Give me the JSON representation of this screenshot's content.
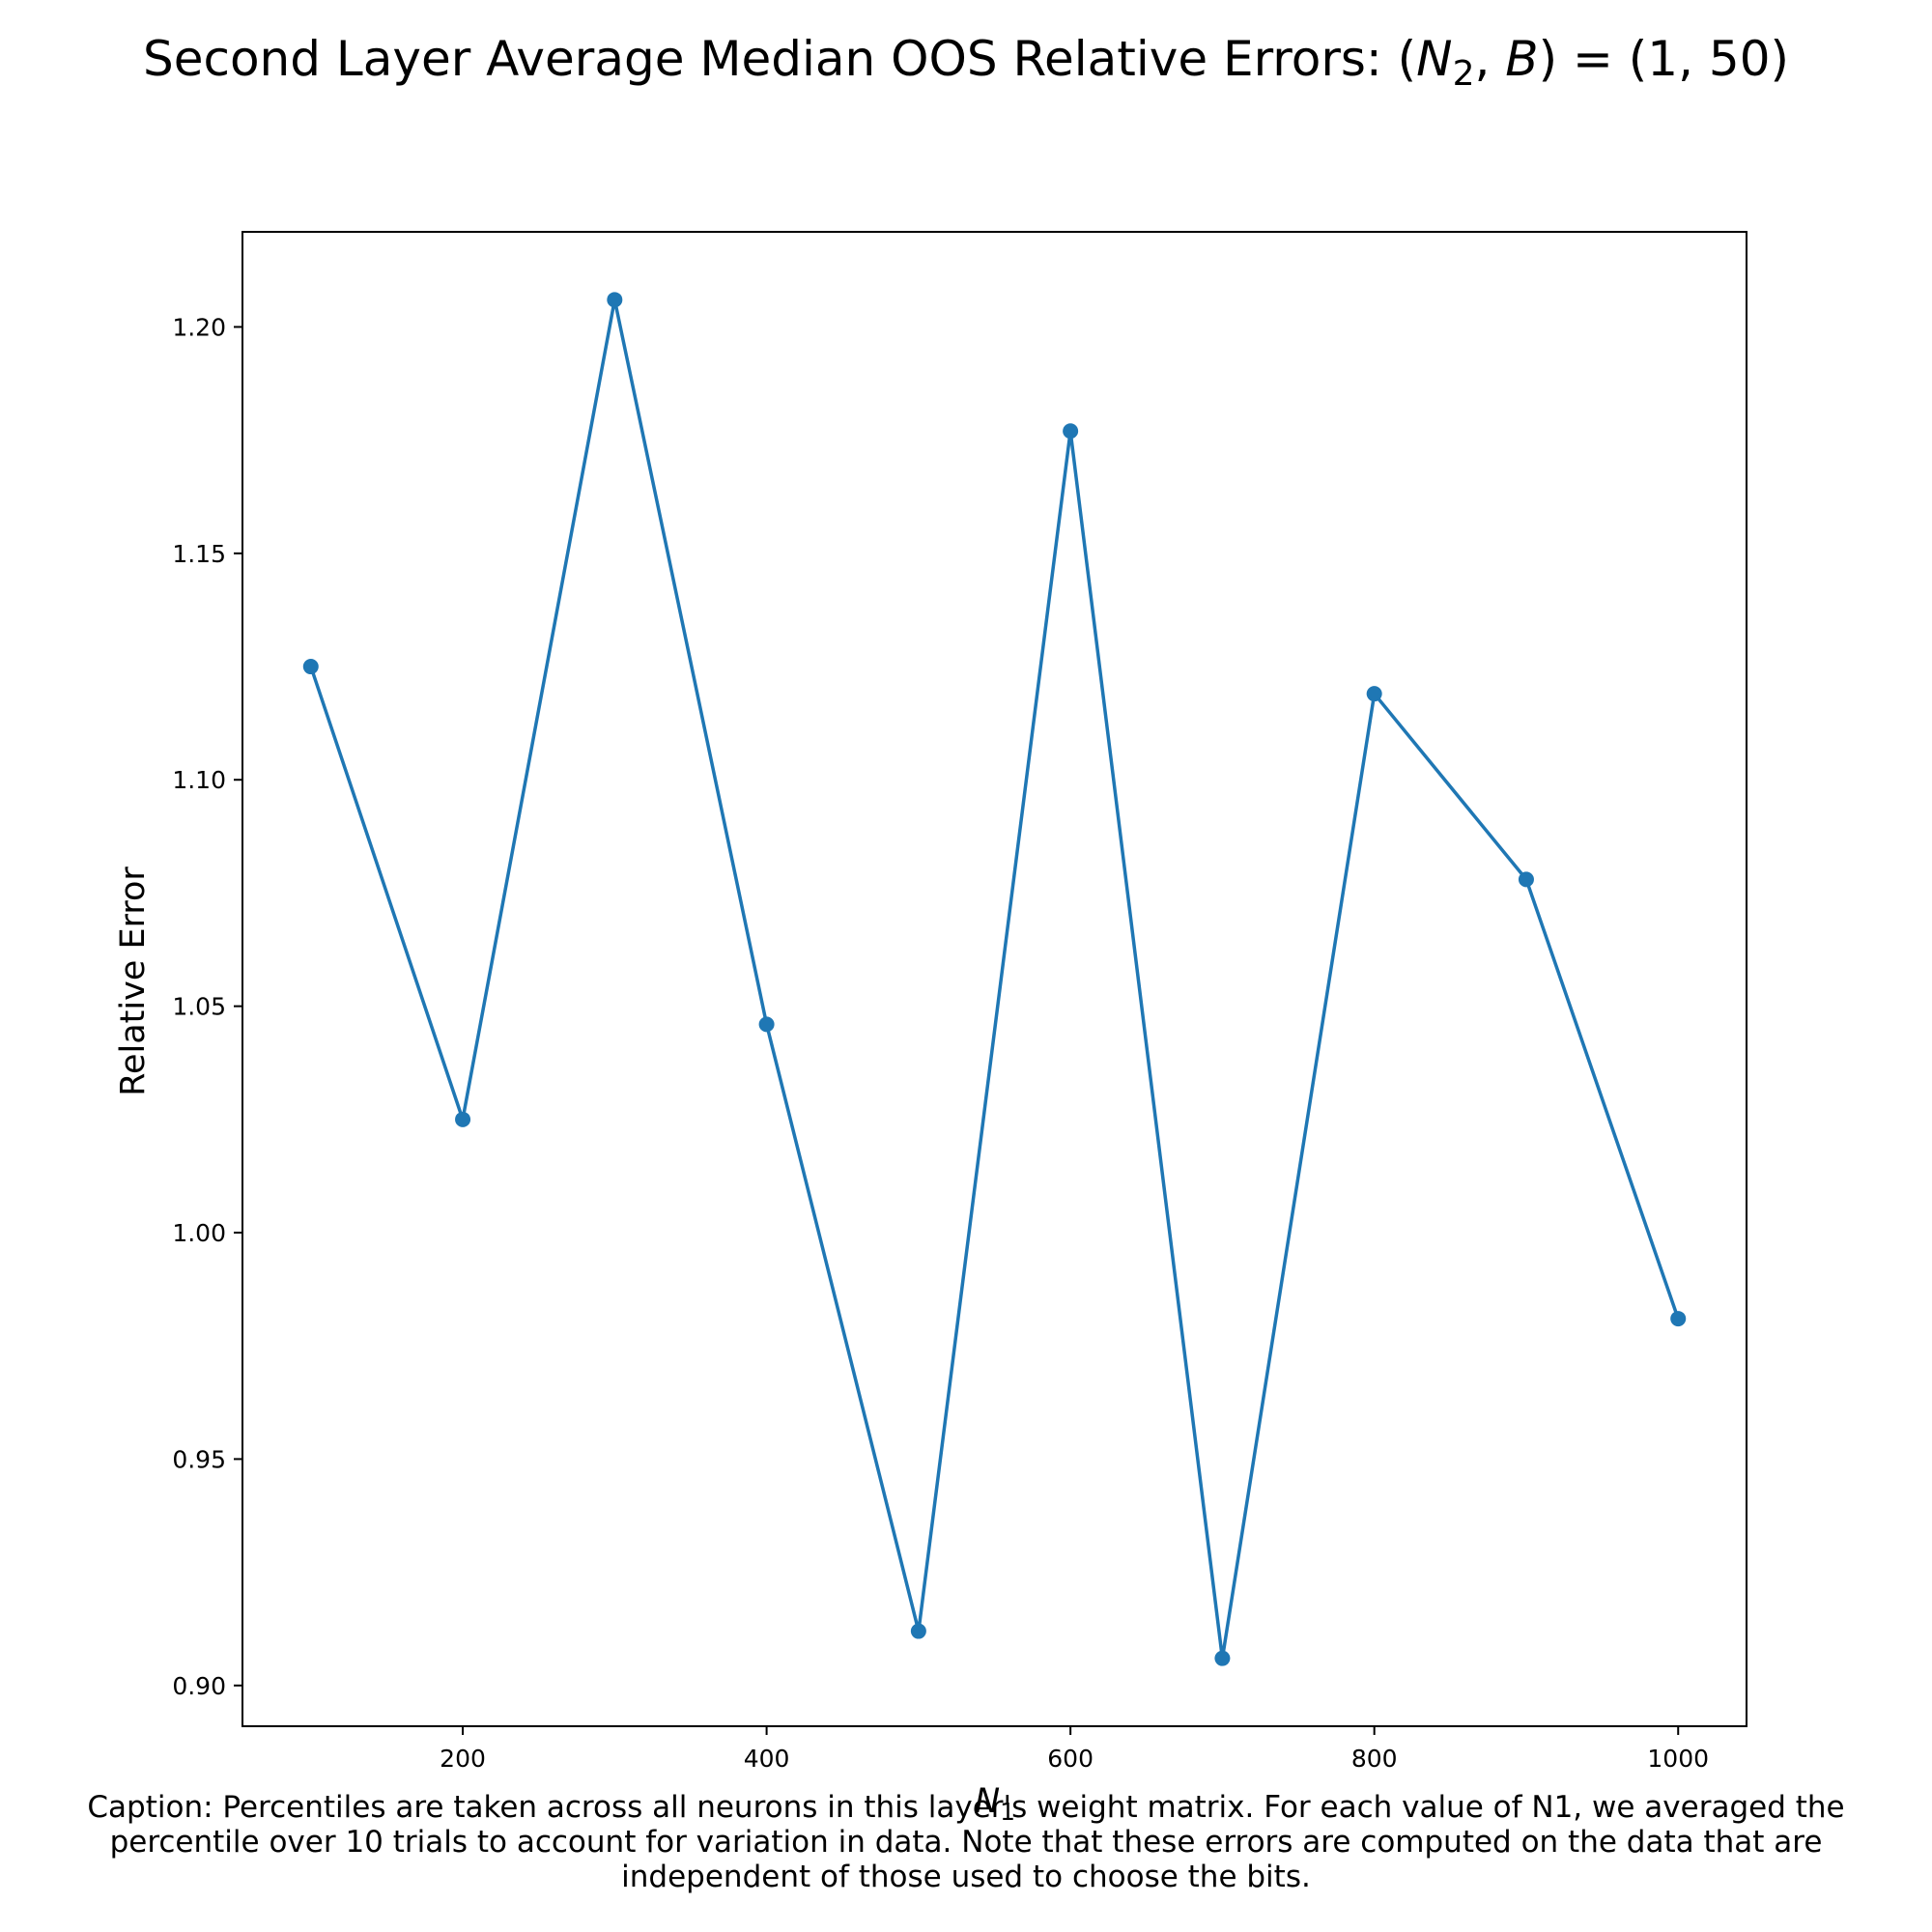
{
  "chart_data": {
    "type": "line",
    "title_prefix": "Second Layer Average Median OOS Relative Errors: (",
    "title_var1": "N",
    "title_var1_sub": "2",
    "title_sep": ", ",
    "title_var2": "B",
    "title_suffix": ") = (1, 50)",
    "xlabel_var": "N",
    "xlabel_sub": "1",
    "ylabel": "Relative Error",
    "x": [
      100,
      200,
      300,
      400,
      500,
      600,
      700,
      800,
      900,
      1000
    ],
    "y": [
      1.125,
      1.025,
      1.206,
      1.046,
      0.912,
      1.177,
      0.906,
      1.119,
      1.078,
      0.981
    ],
    "xlim": [
      55,
      1045
    ],
    "ylim": [
      0.891,
      1.221
    ],
    "xticks": [
      200,
      400,
      600,
      800,
      1000
    ],
    "xtick_labels": [
      "200",
      "400",
      "600",
      "800",
      "1000"
    ],
    "yticks": [
      0.9,
      0.95,
      1.0,
      1.05,
      1.1,
      1.15,
      1.2
    ],
    "ytick_labels": [
      "0.90",
      "0.95",
      "1.00",
      "1.05",
      "1.10",
      "1.15",
      "1.20"
    ],
    "line_color": "#1f77b4",
    "marker": "circle",
    "grid": false
  },
  "caption": {
    "lines": [
      "Caption: Percentiles are taken across all neurons in this layer's weight matrix. For each value of N1, we averaged the",
      "percentile over 10 trials to account for variation in data. Note that these errors are computed on the data that are",
      "independent of those used to choose the bits."
    ]
  }
}
